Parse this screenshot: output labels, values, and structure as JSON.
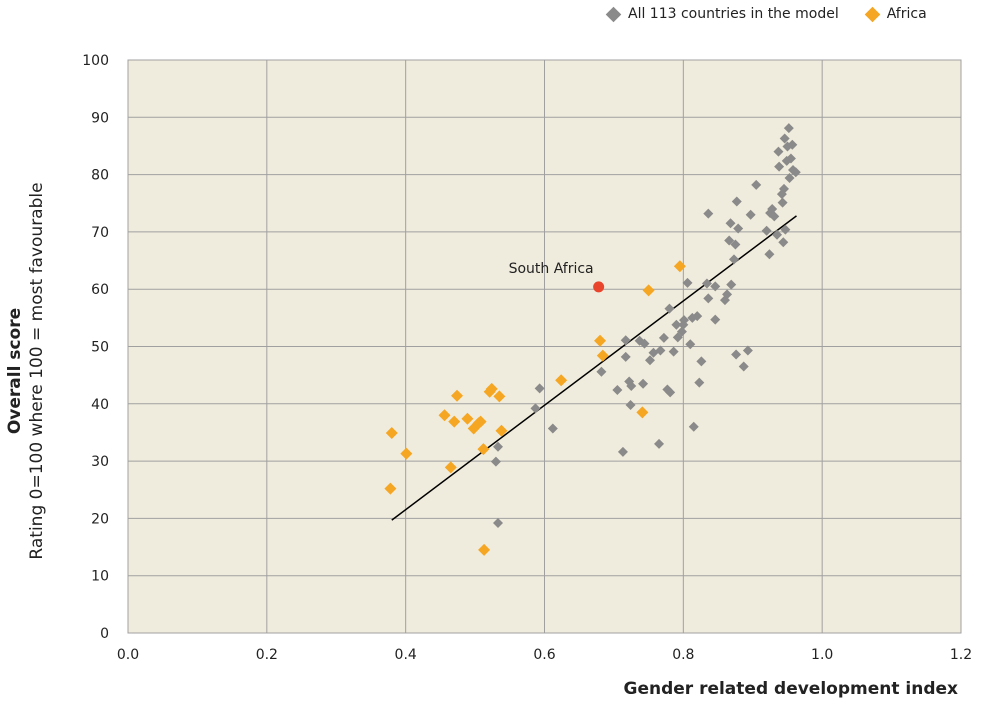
{
  "legend": {
    "all_label": "All 113 countries in the model",
    "africa_label": "Africa"
  },
  "colors": {
    "plot_bg": "#f0ecdd",
    "grid": "#a0a0a0",
    "gray_marker": "#8a8a8a",
    "africa_marker": "#f5a623",
    "highlight": "#e8452c",
    "trend": "#000000"
  },
  "chart_data": {
    "type": "scatter",
    "title": "",
    "xlabel": "Gender related development index",
    "ylabel_title": "Overall score",
    "ylabel": "Rating 0=100 where 100 = most favourable",
    "xlim": [
      0.0,
      1.2
    ],
    "ylim": [
      0,
      100
    ],
    "x_ticks": [
      "0.0",
      "0.2",
      "0.4",
      "0.6",
      "0.8",
      "1.0",
      "1.2"
    ],
    "y_ticks": [
      "0",
      "10",
      "20",
      "30",
      "40",
      "50",
      "60",
      "70",
      "80",
      "90",
      "100"
    ],
    "grid": true,
    "legend_position": "top-right",
    "annotation": {
      "label": "South Africa",
      "x": 0.678,
      "y": 60.4
    },
    "trendline": {
      "x": [
        0.38,
        0.963
      ],
      "y": [
        19.7,
        72.8
      ]
    },
    "series": [
      {
        "name": "All 113 countries in the model",
        "marker": "diamond",
        "points": [
          [
            0.533,
            19.2
          ],
          [
            0.53,
            29.9
          ],
          [
            0.533,
            32.5
          ],
          [
            0.587,
            39.2
          ],
          [
            0.593,
            42.7
          ],
          [
            0.612,
            35.7
          ],
          [
            0.682,
            45.6
          ],
          [
            0.705,
            42.4
          ],
          [
            0.713,
            31.6
          ],
          [
            0.717,
            51.1
          ],
          [
            0.717,
            48.2
          ],
          [
            0.722,
            43.9
          ],
          [
            0.725,
            43.1
          ],
          [
            0.724,
            39.8
          ],
          [
            0.737,
            51.0
          ],
          [
            0.742,
            43.5
          ],
          [
            0.744,
            50.5
          ],
          [
            0.752,
            47.6
          ],
          [
            0.757,
            48.9
          ],
          [
            0.765,
            33.0
          ],
          [
            0.767,
            49.3
          ],
          [
            0.772,
            51.5
          ],
          [
            0.777,
            42.5
          ],
          [
            0.781,
            42.0
          ],
          [
            0.78,
            56.6
          ],
          [
            0.786,
            49.1
          ],
          [
            0.79,
            53.8
          ],
          [
            0.792,
            51.6
          ],
          [
            0.798,
            52.6
          ],
          [
            0.8,
            53.8
          ],
          [
            0.801,
            54.6
          ],
          [
            0.806,
            61.1
          ],
          [
            0.81,
            50.4
          ],
          [
            0.813,
            55.0
          ],
          [
            0.815,
            36.0
          ],
          [
            0.82,
            55.3
          ],
          [
            0.823,
            43.7
          ],
          [
            0.826,
            47.4
          ],
          [
            0.834,
            61.0
          ],
          [
            0.836,
            73.2
          ],
          [
            0.836,
            58.4
          ],
          [
            0.846,
            54.7
          ],
          [
            0.846,
            60.5
          ],
          [
            0.86,
            58.1
          ],
          [
            0.863,
            59.1
          ],
          [
            0.866,
            68.5
          ],
          [
            0.868,
            71.5
          ],
          [
            0.869,
            60.8
          ],
          [
            0.873,
            65.2
          ],
          [
            0.875,
            67.8
          ],
          [
            0.876,
            48.6
          ],
          [
            0.877,
            75.3
          ],
          [
            0.879,
            70.6
          ],
          [
            0.887,
            46.5
          ],
          [
            0.893,
            49.3
          ],
          [
            0.897,
            73.0
          ],
          [
            0.905,
            78.2
          ],
          [
            0.92,
            70.2
          ],
          [
            0.924,
            66.1
          ],
          [
            0.925,
            73.3
          ],
          [
            0.928,
            74.0
          ],
          [
            0.931,
            72.7
          ],
          [
            0.935,
            69.5
          ],
          [
            0.937,
            84.0
          ],
          [
            0.938,
            81.4
          ],
          [
            0.942,
            76.6
          ],
          [
            0.943,
            75.1
          ],
          [
            0.944,
            68.2
          ],
          [
            0.945,
            77.5
          ],
          [
            0.946,
            86.3
          ],
          [
            0.947,
            70.4
          ],
          [
            0.949,
            82.4
          ],
          [
            0.95,
            84.9
          ],
          [
            0.952,
            88.1
          ],
          [
            0.953,
            79.4
          ],
          [
            0.955,
            82.8
          ],
          [
            0.957,
            85.2
          ],
          [
            0.958,
            80.8
          ],
          [
            0.962,
            80.4
          ]
        ]
      },
      {
        "name": "Africa",
        "marker": "diamond",
        "points": [
          [
            0.378,
            25.2
          ],
          [
            0.38,
            34.9
          ],
          [
            0.401,
            31.3
          ],
          [
            0.456,
            38.0
          ],
          [
            0.465,
            28.9
          ],
          [
            0.47,
            36.9
          ],
          [
            0.474,
            41.4
          ],
          [
            0.489,
            37.4
          ],
          [
            0.498,
            35.7
          ],
          [
            0.505,
            36.6
          ],
          [
            0.508,
            36.9
          ],
          [
            0.512,
            32.1
          ],
          [
            0.513,
            14.5
          ],
          [
            0.521,
            42.1
          ],
          [
            0.524,
            42.6
          ],
          [
            0.535,
            41.3
          ],
          [
            0.538,
            35.3
          ],
          [
            0.624,
            44.1
          ],
          [
            0.68,
            51.0
          ],
          [
            0.684,
            48.4
          ],
          [
            0.741,
            38.5
          ],
          [
            0.75,
            59.8
          ],
          [
            0.795,
            64.0
          ]
        ]
      },
      {
        "name": "South Africa",
        "marker": "circle",
        "points": [
          [
            0.678,
            60.4
          ]
        ]
      }
    ]
  }
}
